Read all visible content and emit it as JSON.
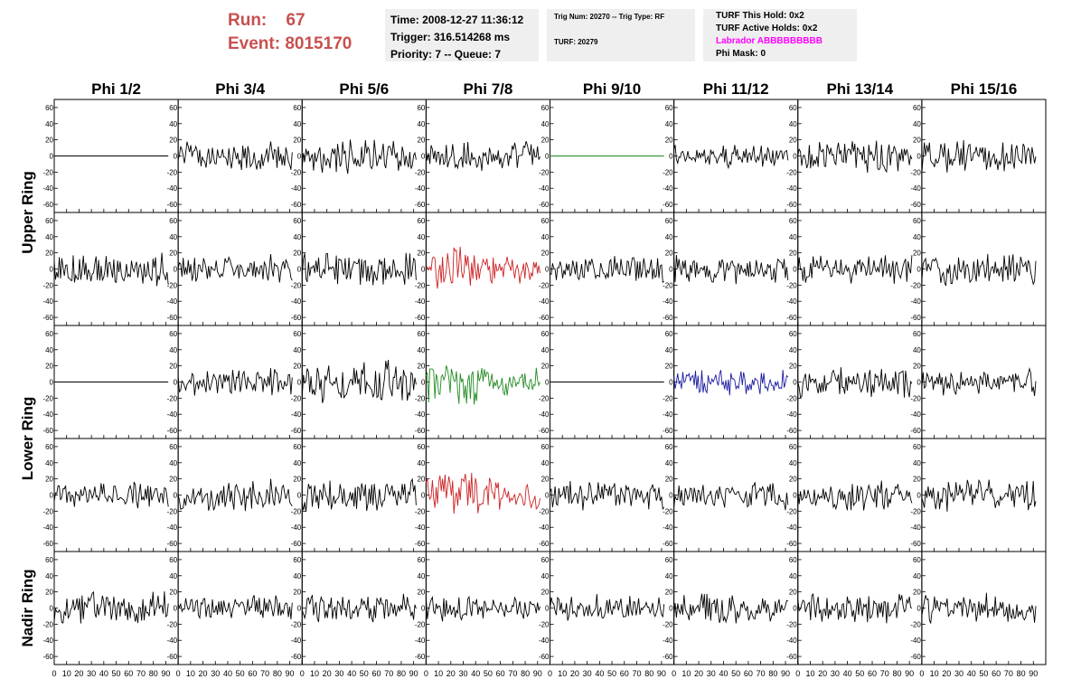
{
  "header": {
    "run_label": "Run:",
    "run_value": "67",
    "event_label": "Event:",
    "event_value": "8015170",
    "time": "Time: 2008-12-27 11:36:12",
    "trigger": "Trigger: 316.514268 ms",
    "priority": "Priority: 7 -- Queue: 7",
    "trig_num": "Trig Num: 20270 -- Trig Type: RF",
    "turf": "TURF: 20279",
    "turf_this_hold": "TURF This Hold: 0x2",
    "turf_active_holds": "TURF Active Holds: 0x2",
    "labrador": "Labrador ABBBBBBBBB",
    "phi_mask": "Phi Mask: 0"
  },
  "colors": {
    "run_text": "#c85050",
    "labrador_text": "#ff00ff",
    "trace_default": "#000000",
    "trace_red": "#cc2222",
    "trace_green": "#228b22",
    "trace_blue": "#1a1aa0",
    "info_box_bg": "#efefef"
  },
  "chart_data": {
    "type": "line",
    "columns": [
      "Phi 1/2",
      "Phi 3/4",
      "Phi 5/6",
      "Phi 7/8",
      "Phi 9/10",
      "Phi 11/12",
      "Phi 13/14",
      "Phi 15/16"
    ],
    "ring_labels": [
      {
        "text": "Upper Ring",
        "rows": [
          0,
          1
        ]
      },
      {
        "text": "Lower Ring",
        "rows": [
          2,
          3
        ]
      },
      {
        "text": "Nadir Ring",
        "rows": [
          4
        ]
      }
    ],
    "xlim": [
      0,
      100
    ],
    "ylim": [
      -70,
      70
    ],
    "x_ticks": [
      0,
      10,
      20,
      30,
      40,
      50,
      60,
      70,
      80,
      90
    ],
    "y_ticks": [
      -60,
      -40,
      -20,
      0,
      20,
      40,
      60
    ],
    "sample_count": 90,
    "grid": false,
    "panels": [
      [
        {
          "color": "trace_default",
          "amplitude": 0
        },
        {
          "color": "trace_default",
          "amplitude": 14
        },
        {
          "color": "trace_default",
          "amplitude": 17
        },
        {
          "color": "trace_default",
          "amplitude": 14
        },
        {
          "color": "trace_green",
          "amplitude": 0
        },
        {
          "color": "trace_default",
          "amplitude": 12
        },
        {
          "color": "trace_default",
          "amplitude": 16
        },
        {
          "color": "trace_default",
          "amplitude": 16
        }
      ],
      [
        {
          "color": "trace_default",
          "amplitude": 16
        },
        {
          "color": "trace_default",
          "amplitude": 14
        },
        {
          "color": "trace_default",
          "amplitude": 17
        },
        {
          "color": "trace_red",
          "amplitude": 22
        },
        {
          "color": "trace_default",
          "amplitude": 13
        },
        {
          "color": "trace_default",
          "amplitude": 14
        },
        {
          "color": "trace_default",
          "amplitude": 14
        },
        {
          "color": "trace_default",
          "amplitude": 16
        }
      ],
      [
        {
          "color": "trace_default",
          "amplitude": 0
        },
        {
          "color": "trace_default",
          "amplitude": 13
        },
        {
          "color": "trace_default",
          "amplitude": 20
        },
        {
          "color": "trace_green",
          "amplitude": 22
        },
        {
          "color": "trace_default",
          "amplitude": 0
        },
        {
          "color": "trace_blue",
          "amplitude": 13
        },
        {
          "color": "trace_default",
          "amplitude": 15
        },
        {
          "color": "trace_default",
          "amplitude": 13
        }
      ],
      [
        {
          "color": "trace_default",
          "amplitude": 13
        },
        {
          "color": "trace_default",
          "amplitude": 15
        },
        {
          "color": "trace_default",
          "amplitude": 18
        },
        {
          "color": "trace_red",
          "amplitude": 22
        },
        {
          "color": "trace_default",
          "amplitude": 14
        },
        {
          "color": "trace_default",
          "amplitude": 14
        },
        {
          "color": "trace_default",
          "amplitude": 15
        },
        {
          "color": "trace_default",
          "amplitude": 16
        }
      ],
      [
        {
          "color": "trace_default",
          "amplitude": 16
        },
        {
          "color": "trace_default",
          "amplitude": 12
        },
        {
          "color": "trace_default",
          "amplitude": 14
        },
        {
          "color": "trace_default",
          "amplitude": 12
        },
        {
          "color": "trace_default",
          "amplitude": 13
        },
        {
          "color": "trace_default",
          "amplitude": 15
        },
        {
          "color": "trace_default",
          "amplitude": 14
        },
        {
          "color": "trace_default",
          "amplitude": 14
        }
      ]
    ]
  }
}
